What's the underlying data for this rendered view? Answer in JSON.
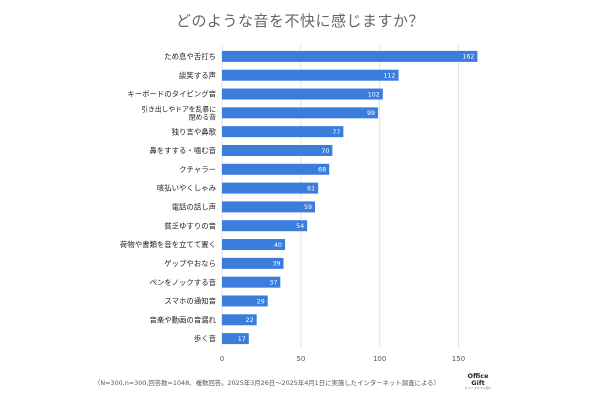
{
  "chart_data": {
    "type": "bar",
    "orientation": "horizontal",
    "title": "どのような音を不快に感じますか？",
    "categories": [
      "ため息や舌打ち",
      "談笑する声",
      "キーボードのタイピング音",
      "引き出しやドアを乱暴に閉める音",
      "独り言や鼻歌",
      "鼻をすする・噛む音",
      "クチャラー",
      "咳払いやくしゃみ",
      "電話の話し声",
      "貧乏ゆすりの音",
      "荷物や書類を音を立てて置く",
      "ゲップやおなら",
      "ペンをノックする音",
      "スマホの通知音",
      "音楽や動画の音漏れ",
      "歩く音"
    ],
    "category_lines": [
      [
        "ため息や舌打ち"
      ],
      [
        "談笑する声"
      ],
      [
        "キーボードのタイピング音"
      ],
      [
        "引き出しやドアを乱暴に",
        "閉める音"
      ],
      [
        "独り言や鼻歌"
      ],
      [
        "鼻をすする・噛む音"
      ],
      [
        "クチャラー"
      ],
      [
        "咳払いやくしゃみ"
      ],
      [
        "電話の話し声"
      ],
      [
        "貧乏ゆすりの音"
      ],
      [
        "荷物や書類を音を立てて置く"
      ],
      [
        "ゲップやおなら"
      ],
      [
        "ペンをノックする音"
      ],
      [
        "スマホの通知音"
      ],
      [
        "音楽や動画の音漏れ"
      ],
      [
        "歩く音"
      ]
    ],
    "values": [
      162,
      112,
      102,
      99,
      77,
      70,
      68,
      61,
      59,
      54,
      40,
      39,
      37,
      29,
      22,
      17
    ],
    "xticks": [
      0,
      50,
      100,
      150
    ],
    "xlim": [
      0,
      170
    ],
    "xlabel": "",
    "ylabel": "",
    "grid": true,
    "bar_color": "#3b7ddd",
    "grid_color": "#e3e3e3",
    "value_label_color": "#ffffff"
  },
  "footnote": "（N=300,n=300,回答数=1048、複数回答。2025年3月26日〜2025年4月1日に実施したインターネット調査による）",
  "brand": {
    "line1": "Office",
    "line2": "Gift",
    "sub": "オフィスギフト調べ"
  }
}
